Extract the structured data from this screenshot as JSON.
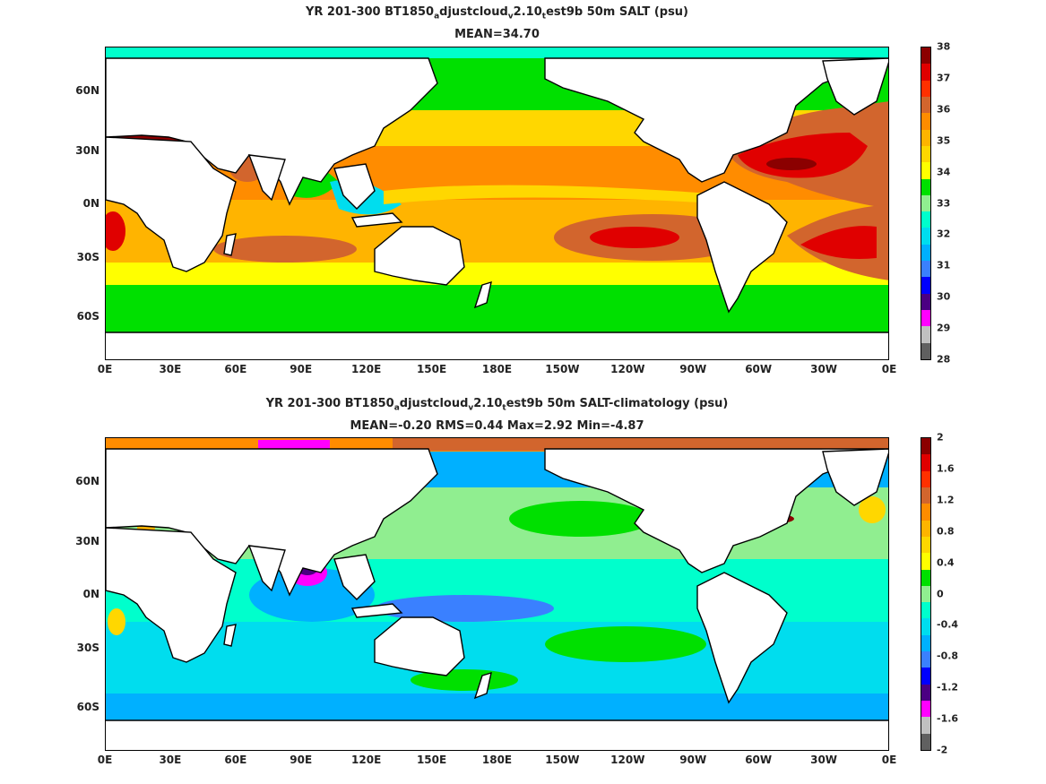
{
  "panels": [
    {
      "title_parts": [
        "YR 201-300 BT1850",
        "a",
        "djustcloud",
        "v",
        "2.10",
        "t",
        "est9b 50m SALT (psu)"
      ],
      "subtitle": "MEAN=34.70",
      "colorbar_ticks": [
        "38",
        "37",
        "36",
        "35",
        "34",
        "33",
        "32",
        "31",
        "30",
        "29",
        "28"
      ],
      "colorbar_colors": [
        "#8b0000",
        "#e00000",
        "#ff3000",
        "#d2652d",
        "#ff8c00",
        "#ffb400",
        "#ffd700",
        "#ffff00",
        "#00e000",
        "#90ee90",
        "#00ffcc",
        "#00ddee",
        "#00b0ff",
        "#3a80ff",
        "#0000ff",
        "#4b0082",
        "#ff00ff",
        "#c0c0c0",
        "#606060"
      ]
    },
    {
      "title_parts": [
        "YR 201-300 BT1850",
        "a",
        "djustcloud",
        "v",
        "2.10",
        "t",
        "est9b 50m SALT-climatology (psu)"
      ],
      "subtitle": "MEAN=-0.20   RMS=0.44   Max=2.92   Min=-4.87",
      "colorbar_ticks": [
        "2",
        "1.6",
        "1.2",
        "0.8",
        "0.4",
        "0",
        "-0.4",
        "-0.8",
        "-1.2",
        "-1.6",
        "-2"
      ],
      "colorbar_colors": [
        "#8b0000",
        "#e00000",
        "#ff3000",
        "#d2652d",
        "#ff8c00",
        "#ffb400",
        "#ffd700",
        "#ffff00",
        "#00e000",
        "#90ee90",
        "#00ffcc",
        "#00ddee",
        "#00b0ff",
        "#3a80ff",
        "#0000ff",
        "#4b0082",
        "#ff00ff",
        "#c0c0c0",
        "#606060"
      ]
    }
  ],
  "x_ticks": [
    "0E",
    "30E",
    "60E",
    "90E",
    "120E",
    "150E",
    "180E",
    "150W",
    "120W",
    "90W",
    "60W",
    "30W",
    "0E"
  ],
  "y_ticks": [
    "60N",
    "30N",
    "0N",
    "30S",
    "60S"
  ]
}
